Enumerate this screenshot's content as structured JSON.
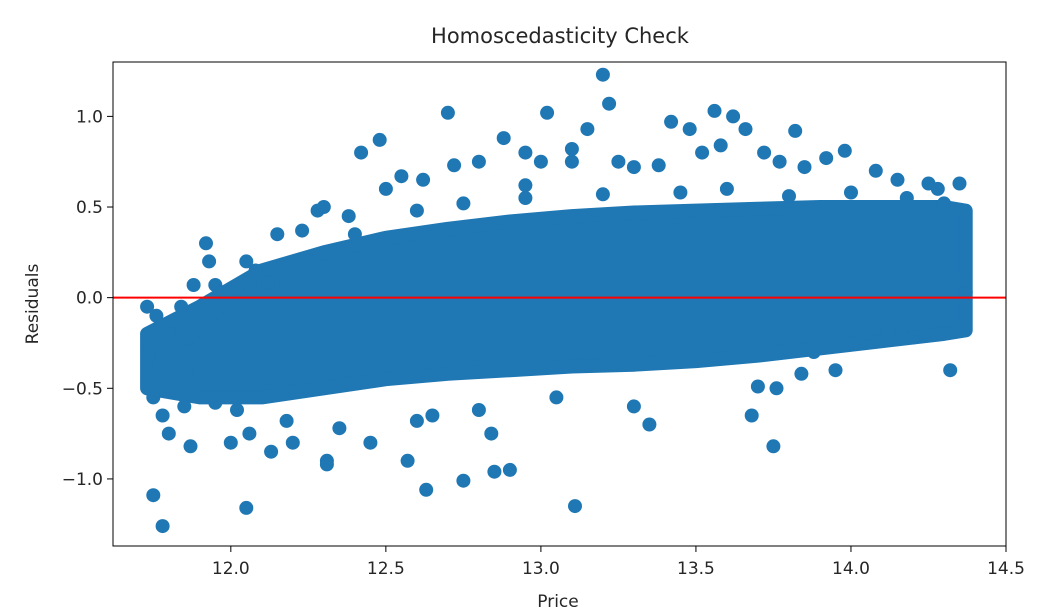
{
  "chart_data": {
    "type": "scatter",
    "title": "Homoscedasticity Check",
    "xlabel": "Price",
    "ylabel": "Residuals",
    "xlim": [
      11.62,
      14.5
    ],
    "ylim": [
      -1.37,
      1.3
    ],
    "xticks": [
      12.0,
      12.5,
      13.0,
      13.5,
      14.0,
      14.5
    ],
    "xtick_labels": [
      "12.0",
      "12.5",
      "13.0",
      "13.5",
      "14.0",
      "14.5"
    ],
    "yticks": [
      -1.0,
      -0.5,
      0.0,
      0.5,
      1.0
    ],
    "ytick_labels": [
      "−1.0",
      "−0.5",
      "0.0",
      "0.5",
      "1.0"
    ],
    "grid": false,
    "legend": "none",
    "point_color": "#1f77b4",
    "reference_line": {
      "y": 0.0,
      "color": "#ff0000"
    },
    "dense_band": {
      "x": [
        11.73,
        11.9,
        12.1,
        12.3,
        12.5,
        12.7,
        12.9,
        13.1,
        13.3,
        13.5,
        13.7,
        13.9,
        14.1,
        14.3,
        14.37
      ],
      "lower": [
        -0.5,
        -0.55,
        -0.55,
        -0.5,
        -0.45,
        -0.42,
        -0.4,
        -0.38,
        -0.37,
        -0.35,
        -0.32,
        -0.28,
        -0.24,
        -0.2,
        -0.18
      ],
      "upper": [
        -0.2,
        -0.05,
        0.15,
        0.25,
        0.33,
        0.38,
        0.42,
        0.45,
        0.47,
        0.48,
        0.49,
        0.5,
        0.5,
        0.5,
        0.48
      ]
    },
    "points": [
      [
        11.73,
        -0.05
      ],
      [
        11.74,
        -0.28
      ],
      [
        11.74,
        -0.45
      ],
      [
        11.75,
        -0.55
      ],
      [
        11.76,
        -0.1
      ],
      [
        11.77,
        -0.36
      ],
      [
        11.78,
        -0.65
      ],
      [
        11.8,
        -0.2
      ],
      [
        11.8,
        -0.75
      ],
      [
        11.82,
        -0.52
      ],
      [
        11.84,
        -0.05
      ],
      [
        11.85,
        -0.6
      ],
      [
        11.86,
        -0.3
      ],
      [
        11.87,
        -0.82
      ],
      [
        11.88,
        0.07
      ],
      [
        11.9,
        -0.4
      ],
      [
        11.92,
        0.3
      ],
      [
        11.93,
        0.2
      ],
      [
        11.95,
        0.07
      ],
      [
        11.97,
        0.03
      ],
      [
        12.0,
        -0.8
      ],
      [
        12.02,
        0.05
      ],
      [
        12.05,
        0.2
      ],
      [
        12.06,
        -0.75
      ],
      [
        12.08,
        0.15
      ],
      [
        12.13,
        -0.85
      ],
      [
        12.15,
        0.35
      ],
      [
        12.2,
        -0.8
      ],
      [
        12.23,
        0.37
      ],
      [
        12.28,
        0.48
      ],
      [
        12.3,
        0.5
      ],
      [
        12.31,
        -0.9
      ],
      [
        12.38,
        0.45
      ],
      [
        12.42,
        0.8
      ],
      [
        12.45,
        -0.8
      ],
      [
        12.48,
        0.87
      ],
      [
        12.5,
        0.6
      ],
      [
        12.55,
        0.67
      ],
      [
        12.57,
        -0.9
      ],
      [
        12.62,
        0.65
      ],
      [
        12.65,
        -0.65
      ],
      [
        12.7,
        1.02
      ],
      [
        12.72,
        0.73
      ],
      [
        12.8,
        0.75
      ],
      [
        12.84,
        -0.75
      ],
      [
        12.88,
        0.88
      ],
      [
        12.9,
        -0.95
      ],
      [
        12.95,
        0.8
      ],
      [
        13.0,
        0.75
      ],
      [
        13.02,
        1.02
      ],
      [
        13.1,
        0.75
      ],
      [
        13.15,
        0.93
      ],
      [
        13.2,
        1.23
      ],
      [
        13.22,
        1.07
      ],
      [
        13.25,
        0.75
      ],
      [
        13.3,
        0.72
      ],
      [
        13.35,
        -0.7
      ],
      [
        13.38,
        0.73
      ],
      [
        13.42,
        0.97
      ],
      [
        13.48,
        0.93
      ],
      [
        13.52,
        0.8
      ],
      [
        13.56,
        1.03
      ],
      [
        13.58,
        0.84
      ],
      [
        13.62,
        1.0
      ],
      [
        13.66,
        0.93
      ],
      [
        13.68,
        -0.65
      ],
      [
        13.72,
        0.8
      ],
      [
        13.75,
        -0.82
      ],
      [
        13.77,
        0.75
      ],
      [
        13.82,
        0.92
      ],
      [
        13.85,
        0.72
      ],
      [
        13.88,
        -0.3
      ],
      [
        13.92,
        0.77
      ],
      [
        13.98,
        0.81
      ],
      [
        14.05,
        -0.2
      ],
      [
        14.08,
        0.7
      ],
      [
        14.12,
        -0.2
      ],
      [
        14.15,
        0.65
      ],
      [
        14.2,
        -0.22
      ],
      [
        14.25,
        0.63
      ],
      [
        14.28,
        0.6
      ],
      [
        14.32,
        -0.4
      ],
      [
        14.35,
        0.63
      ],
      [
        11.75,
        -1.09
      ],
      [
        11.78,
        -1.26
      ],
      [
        12.05,
        -1.16
      ],
      [
        12.31,
        -0.92
      ],
      [
        12.63,
        -1.06
      ],
      [
        12.75,
        -1.01
      ],
      [
        12.85,
        -0.96
      ],
      [
        13.11,
        -1.15
      ],
      [
        13.1,
        0.82
      ],
      [
        12.95,
        0.62
      ],
      [
        13.7,
        -0.49
      ],
      [
        13.76,
        -0.5
      ],
      [
        13.84,
        -0.42
      ],
      [
        13.95,
        -0.4
      ],
      [
        13.3,
        -0.6
      ],
      [
        13.05,
        -0.55
      ],
      [
        12.8,
        -0.62
      ],
      [
        12.6,
        -0.68
      ],
      [
        12.35,
        -0.72
      ],
      [
        12.18,
        -0.68
      ],
      [
        12.02,
        -0.62
      ],
      [
        11.95,
        -0.58
      ],
      [
        11.83,
        -0.42
      ],
      [
        11.9,
        -0.25
      ],
      [
        11.98,
        -0.12
      ],
      [
        12.12,
        0.08
      ],
      [
        12.25,
        0.2
      ],
      [
        12.4,
        0.35
      ],
      [
        12.6,
        0.48
      ],
      [
        12.75,
        0.52
      ],
      [
        12.95,
        0.55
      ],
      [
        13.2,
        0.57
      ],
      [
        13.45,
        0.58
      ],
      [
        13.6,
        0.6
      ],
      [
        13.8,
        0.56
      ],
      [
        14.0,
        0.58
      ],
      [
        14.18,
        0.55
      ],
      [
        14.3,
        0.52
      ],
      [
        14.36,
        0.1
      ],
      [
        14.37,
        0.03
      ]
    ]
  }
}
